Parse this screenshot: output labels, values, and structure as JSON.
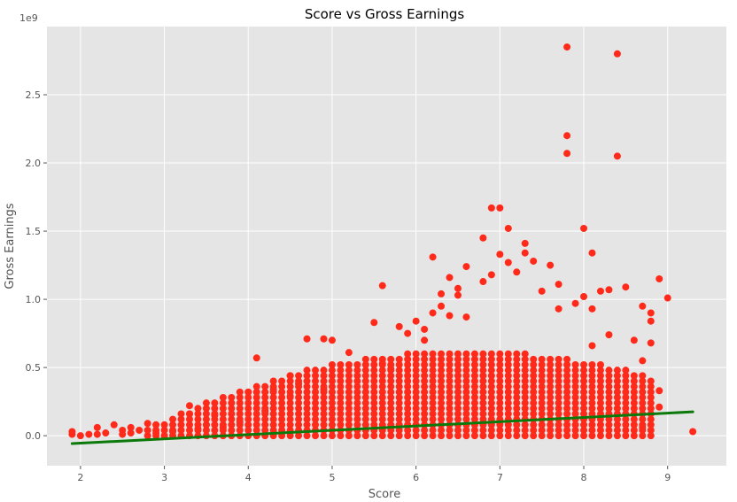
{
  "chart_data": {
    "type": "scatter",
    "title": "Score vs Gross Earnings",
    "xlabel": "Score",
    "ylabel": "Gross Earnings",
    "y_offset_text": "1e9",
    "xlim": [
      1.6,
      9.7
    ],
    "ylim": [
      -0.22,
      3.0
    ],
    "x_ticks": [
      2,
      3,
      4,
      5,
      6,
      7,
      8,
      9
    ],
    "x_tick_labels": [
      "2",
      "3",
      "4",
      "5",
      "6",
      "7",
      "8",
      "9"
    ],
    "y_ticks": [
      0.0,
      0.5,
      1.0,
      1.5,
      2.0,
      2.5
    ],
    "y_tick_labels": [
      "0.0",
      "0.5",
      "1.0",
      "1.5",
      "2.0",
      "2.5"
    ],
    "grid": true,
    "colors": {
      "background": "#E5E5E5",
      "grid": "#FFFFFF",
      "points": "#FF2A1A",
      "regression_line": "#0B7A0B"
    },
    "regression_line": {
      "x": [
        1.9,
        9.3
      ],
      "y": [
        -0.058,
        0.175
      ]
    },
    "points": [
      [
        2.8,
        0.09
      ],
      [
        3.3,
        0.22
      ],
      [
        4.1,
        0.57
      ],
      [
        4.5,
        0.44
      ],
      [
        4.7,
        0.71
      ],
      [
        4.9,
        0.71
      ],
      [
        5.0,
        0.7
      ],
      [
        5.2,
        0.61
      ],
      [
        5.5,
        0.83
      ],
      [
        5.6,
        1.1
      ],
      [
        6.2,
        1.31
      ],
      [
        6.3,
        1.04
      ],
      [
        6.4,
        1.16
      ],
      [
        6.5,
        1.08
      ],
      [
        6.6,
        1.24
      ],
      [
        6.8,
        1.45
      ],
      [
        6.9,
        1.67
      ],
      [
        7.0,
        1.67
      ],
      [
        7.1,
        1.52
      ],
      [
        7.3,
        1.41
      ],
      [
        7.3,
        1.34
      ],
      [
        7.4,
        1.28
      ],
      [
        7.6,
        1.25
      ],
      [
        7.7,
        1.11
      ],
      [
        7.8,
        2.85
      ],
      [
        7.8,
        2.2
      ],
      [
        7.8,
        2.07
      ],
      [
        8.0,
        1.52
      ],
      [
        8.1,
        1.34
      ],
      [
        8.4,
        2.8
      ],
      [
        8.4,
        2.05
      ],
      [
        8.5,
        1.09
      ],
      [
        8.9,
        1.15
      ],
      [
        9.0,
        1.01
      ],
      [
        9.3,
        0.03
      ],
      [
        8.7,
        0.95
      ],
      [
        8.8,
        0.9
      ],
      [
        8.8,
        0.84
      ],
      [
        8.8,
        0.68
      ],
      [
        8.7,
        0.55
      ],
      [
        8.9,
        0.33
      ],
      [
        8.9,
        0.21
      ],
      [
        8.7,
        0.06
      ],
      [
        7.0,
        1.33
      ],
      [
        7.1,
        1.27
      ],
      [
        7.2,
        1.2
      ],
      [
        6.8,
        1.13
      ],
      [
        6.9,
        1.18
      ],
      [
        6.5,
        1.03
      ],
      [
        6.1,
        0.78
      ],
      [
        6.2,
        0.9
      ],
      [
        6.4,
        0.88
      ],
      [
        6.6,
        0.87
      ],
      [
        6.0,
        0.84
      ],
      [
        5.8,
        0.8
      ],
      [
        5.9,
        0.75
      ],
      [
        6.3,
        0.95
      ],
      [
        7.5,
        1.06
      ],
      [
        7.9,
        0.97
      ],
      [
        8.2,
        1.06
      ],
      [
        8.3,
        1.07
      ],
      [
        8.0,
        1.02
      ],
      [
        7.7,
        0.93
      ],
      [
        8.6,
        0.7
      ],
      [
        8.3,
        0.74
      ],
      [
        8.1,
        0.93
      ],
      [
        8.1,
        0.66
      ],
      [
        4.0,
        0.32
      ],
      [
        4.3,
        0.34
      ],
      [
        3.8,
        0.24
      ],
      [
        4.6,
        0.38
      ],
      [
        5.7,
        0.49
      ],
      [
        5.6,
        0.53
      ],
      [
        6.1,
        0.7
      ],
      [
        4.5,
        0.29
      ],
      [
        3.3,
        0.16
      ],
      [
        3.6,
        0.15
      ],
      [
        3.8,
        0.16
      ],
      [
        4.2,
        0.18
      ],
      [
        4.9,
        0.34
      ],
      [
        2.2,
        0.06
      ],
      [
        2.4,
        0.08
      ],
      [
        2.6,
        0.06
      ],
      [
        2.5,
        0.04
      ],
      [
        2.7,
        0.04
      ],
      [
        1.9,
        0.03
      ],
      [
        2.1,
        0.01
      ],
      [
        2.3,
        0.02
      ],
      [
        2.9,
        0.02
      ],
      [
        3.1,
        0.03
      ],
      [
        3.4,
        0.05
      ],
      [
        3.5,
        0.08
      ],
      [
        3.7,
        0.06
      ],
      [
        3.9,
        0.1
      ],
      [
        1.9,
        0.01
      ],
      [
        2.0,
        0.0
      ],
      [
        2.2,
        0.01
      ],
      [
        2.5,
        0.01
      ],
      [
        2.6,
        0.02
      ],
      [
        3.0,
        0.0
      ]
    ],
    "dense_band": {
      "x_start": 2.8,
      "x_end": 8.8,
      "x_step": 0.1,
      "peak_x": 6.6,
      "low_y": 0.0,
      "peak_high_y": 0.62,
      "edge_high_y": 0.06,
      "y_step": 0.04
    }
  }
}
